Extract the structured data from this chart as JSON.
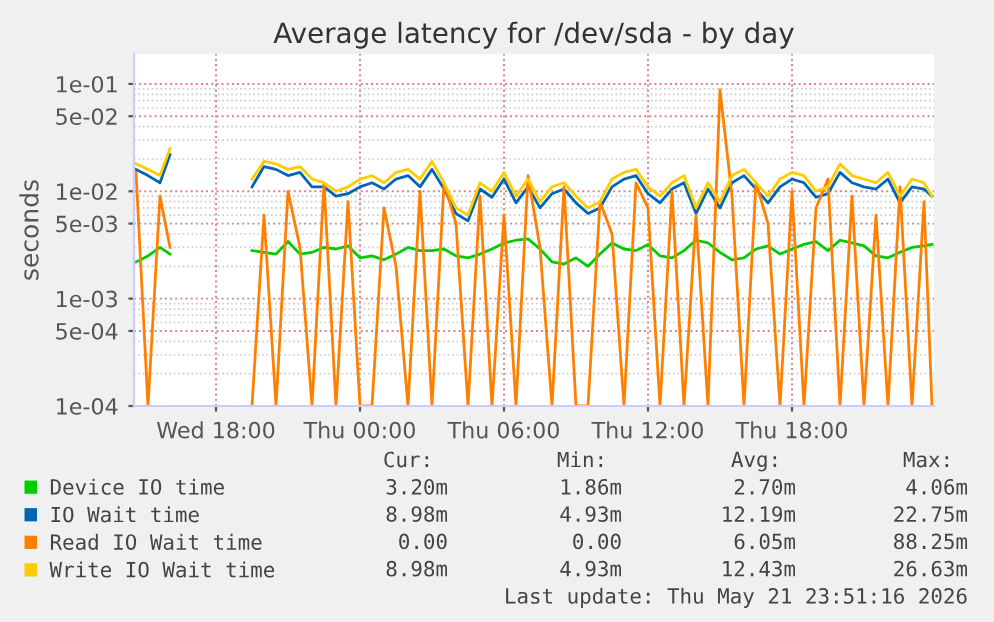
{
  "chart_data": {
    "type": "line",
    "title": "Average latency for /dev/sda - by day",
    "ylabel": "seconds",
    "x": [
      "2026-05-20T14:40",
      "2026-05-20T15:10",
      "2026-05-20T15:40",
      "2026-05-20T16:05",
      "2026-05-20T17:30",
      "2026-05-20T19:30",
      "2026-05-20T20:00",
      "2026-05-20T20:30",
      "2026-05-20T21:00",
      "2026-05-20T21:30",
      "2026-05-20T22:00",
      "2026-05-20T22:30",
      "2026-05-20T23:00",
      "2026-05-20T23:30",
      "2026-05-21T00:00",
      "2026-05-21T00:30",
      "2026-05-21T01:00",
      "2026-05-21T01:30",
      "2026-05-21T02:00",
      "2026-05-21T02:30",
      "2026-05-21T03:00",
      "2026-05-21T03:30",
      "2026-05-21T04:00",
      "2026-05-21T04:30",
      "2026-05-21T05:00",
      "2026-05-21T05:30",
      "2026-05-21T06:00",
      "2026-05-21T06:30",
      "2026-05-21T07:00",
      "2026-05-21T07:30",
      "2026-05-21T08:00",
      "2026-05-21T08:30",
      "2026-05-21T09:00",
      "2026-05-21T09:30",
      "2026-05-21T10:00",
      "2026-05-21T10:30",
      "2026-05-21T11:00",
      "2026-05-21T11:30",
      "2026-05-21T12:00",
      "2026-05-21T12:30",
      "2026-05-21T13:00",
      "2026-05-21T13:30",
      "2026-05-21T14:00",
      "2026-05-21T14:30",
      "2026-05-21T15:00",
      "2026-05-21T15:30",
      "2026-05-21T16:00",
      "2026-05-21T16:30",
      "2026-05-21T17:00",
      "2026-05-21T17:30",
      "2026-05-21T18:00",
      "2026-05-21T18:30",
      "2026-05-21T19:00",
      "2026-05-21T19:30",
      "2026-05-21T20:00",
      "2026-05-21T20:30",
      "2026-05-21T21:00",
      "2026-05-21T21:30",
      "2026-05-21T22:00",
      "2026-05-21T22:30",
      "2026-05-21T23:00",
      "2026-05-21T23:30",
      "2026-05-21T23:50"
    ],
    "series": [
      {
        "name": "Device IO time",
        "color": "#00cc00",
        "values": [
          0.0022,
          0.0025,
          0.003,
          0.0026,
          null,
          0.0028,
          0.0027,
          0.0026,
          0.0034,
          0.0026,
          0.0027,
          0.003,
          0.0029,
          0.0031,
          0.0024,
          0.0025,
          0.0023,
          0.0026,
          0.003,
          0.0028,
          0.0028,
          0.0029,
          0.0025,
          0.0024,
          0.0026,
          0.0029,
          0.0033,
          0.0035,
          0.0036,
          0.0029,
          0.0022,
          0.0021,
          0.0024,
          0.002,
          0.0026,
          0.0033,
          0.0029,
          0.0028,
          0.0032,
          0.0025,
          0.0024,
          0.0028,
          0.0035,
          0.0033,
          0.0027,
          0.0023,
          0.0024,
          0.0029,
          0.0031,
          0.0026,
          0.0029,
          0.0032,
          0.0034,
          0.0028,
          0.0035,
          0.0033,
          0.0031,
          0.0025,
          0.0024,
          0.0027,
          0.003,
          0.0031,
          0.0032
        ]
      },
      {
        "name": "IO Wait time",
        "color": "#0066b3",
        "values": [
          0.016,
          0.014,
          0.012,
          0.022,
          null,
          0.011,
          0.017,
          0.016,
          0.014,
          0.015,
          0.011,
          0.011,
          0.009,
          0.0095,
          0.011,
          0.012,
          0.0105,
          0.013,
          0.014,
          0.011,
          0.016,
          0.0105,
          0.0062,
          0.0053,
          0.0105,
          0.0088,
          0.013,
          0.0078,
          0.011,
          0.007,
          0.0095,
          0.0105,
          0.0078,
          0.0062,
          0.007,
          0.011,
          0.013,
          0.014,
          0.0095,
          0.0078,
          0.0105,
          0.012,
          0.0062,
          0.0105,
          0.007,
          0.012,
          0.014,
          0.0105,
          0.0078,
          0.011,
          0.013,
          0.012,
          0.0088,
          0.0095,
          0.015,
          0.012,
          0.011,
          0.0105,
          0.013,
          0.0078,
          0.011,
          0.0105,
          0.009
        ]
      },
      {
        "name": "Read IO Wait time",
        "color": "#ff8000",
        "values": [
          0.015,
          0.0001,
          0.009,
          0.003,
          null,
          0.0001,
          0.006,
          0.0001,
          0.01,
          0.003,
          0.0001,
          0.012,
          0.0001,
          0.008,
          0.0001,
          0.0001,
          0.007,
          0.002,
          0.0001,
          0.01,
          0.0001,
          0.012,
          0.005,
          0.0001,
          0.009,
          0.0001,
          0.006,
          0.0001,
          0.014,
          0.003,
          0.0001,
          0.011,
          0.0001,
          0.0001,
          0.008,
          0.004,
          0.0001,
          0.012,
          0.007,
          0.0001,
          0.01,
          0.0001,
          0.006,
          0.0001,
          0.088,
          0.009,
          0.0001,
          0.012,
          0.005,
          0.0001,
          0.01,
          0.0001,
          0.007,
          0.013,
          0.0001,
          0.009,
          0.0001,
          0.006,
          0.0001,
          0.011,
          0.0001,
          0.008,
          0.0001
        ]
      },
      {
        "name": "Write IO Wait time",
        "color": "#ffcc00",
        "values": [
          0.018,
          0.016,
          0.014,
          0.025,
          null,
          0.013,
          0.019,
          0.018,
          0.016,
          0.017,
          0.013,
          0.012,
          0.01,
          0.011,
          0.013,
          0.014,
          0.012,
          0.015,
          0.016,
          0.013,
          0.019,
          0.012,
          0.007,
          0.006,
          0.012,
          0.01,
          0.015,
          0.009,
          0.013,
          0.008,
          0.011,
          0.012,
          0.009,
          0.007,
          0.008,
          0.013,
          0.015,
          0.016,
          0.011,
          0.009,
          0.012,
          0.014,
          0.007,
          0.012,
          0.008,
          0.014,
          0.016,
          0.012,
          0.009,
          0.013,
          0.015,
          0.014,
          0.01,
          0.011,
          0.018,
          0.014,
          0.013,
          0.012,
          0.015,
          0.009,
          0.013,
          0.012,
          0.009
        ]
      }
    ],
    "log": "y",
    "ylim": [
      0.0001,
      0.19
    ],
    "yticks": [
      {
        "value": 0.0001,
        "label": "1e-04"
      },
      {
        "value": 0.0005,
        "label": "5e-04"
      },
      {
        "value": 0.001,
        "label": "1e-03"
      },
      {
        "value": 0.005,
        "label": "5e-03"
      },
      {
        "value": 0.01,
        "label": "1e-02"
      },
      {
        "value": 0.05,
        "label": "5e-02"
      },
      {
        "value": 0.1,
        "label": "1e-01"
      }
    ],
    "xlim": [
      "2026-05-20T14:35",
      "2026-05-21T23:55"
    ],
    "xticks": [
      {
        "value": "2026-05-20T18:00",
        "label": "Wed 18:00"
      },
      {
        "value": "2026-05-21T00:00",
        "label": "Thu 00:00"
      },
      {
        "value": "2026-05-21T06:00",
        "label": "Thu 06:00"
      },
      {
        "value": "2026-05-21T12:00",
        "label": "Thu 12:00"
      },
      {
        "value": "2026-05-21T18:00",
        "label": "Thu 18:00"
      }
    ],
    "grid": true,
    "legend": "bottom",
    "marker": "none",
    "line_style": "solid",
    "annotations": [
      "Cur:",
      "Min:",
      "Avg:",
      "Max:",
      "3.20m",
      "1.86m",
      "2.70m",
      "4.06m",
      "8.98m",
      "4.93m",
      "12.19m",
      "22.75m",
      "0.00",
      "0.00",
      "6.05m",
      "88.25m",
      "8.98m",
      "4.93m",
      "12.43m",
      "26.63m",
      "Last update: Thu May 21 23:51:16 2026"
    ]
  }
}
